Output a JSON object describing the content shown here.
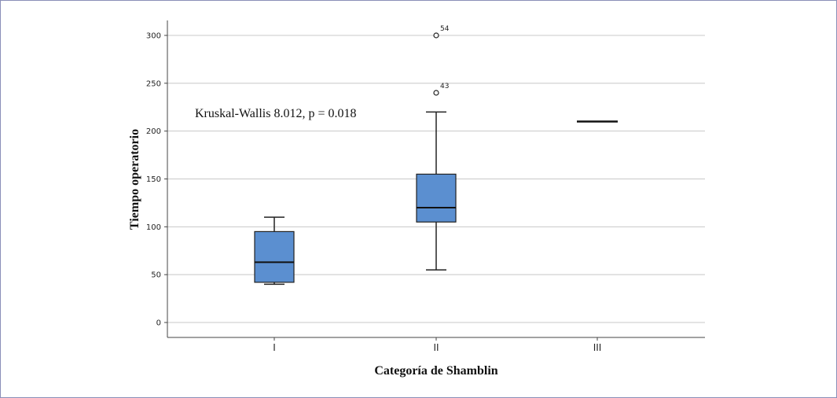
{
  "chart_data": {
    "type": "box",
    "title": "",
    "xlabel": "Categoría de Shamblin",
    "ylabel": "Tiempo operatorio",
    "ylim": [
      -15,
      315
    ],
    "yticks": [
      0,
      50,
      100,
      150,
      200,
      250,
      300
    ],
    "grid": true,
    "annotation": "Kruskal-Wallis 8.012, p = 0.018",
    "box_color": "#5b8fd0",
    "categories": [
      "I",
      "II",
      "III"
    ],
    "boxes": [
      {
        "category": "I",
        "whisker_low": 40,
        "q1": 42,
        "median": 63,
        "q3": 95,
        "whisker_high": 110,
        "outliers": []
      },
      {
        "category": "II",
        "whisker_low": 55,
        "q1": 105,
        "median": 120,
        "q3": 155,
        "whisker_high": 220,
        "outliers": [
          {
            "value": 240,
            "label": "43"
          },
          {
            "value": 300,
            "label": "54"
          }
        ]
      },
      {
        "category": "III",
        "whisker_low": 210,
        "q1": 210,
        "median": 210,
        "q3": 210,
        "whisker_high": 210,
        "outliers": []
      }
    ]
  }
}
